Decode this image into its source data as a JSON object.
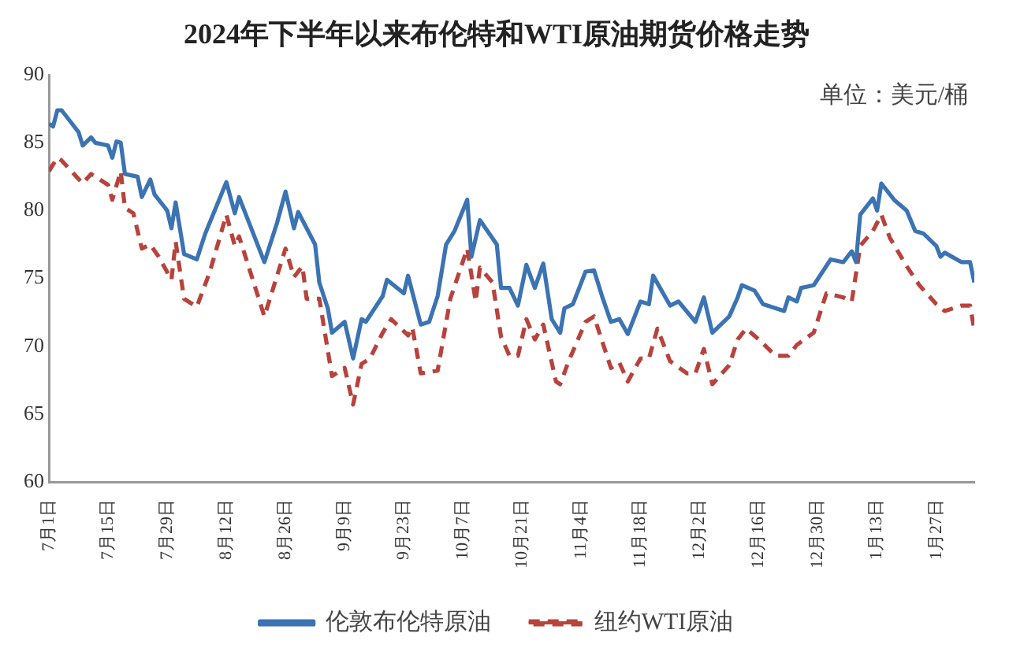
{
  "chart_data": {
    "type": "line",
    "title": "2024年下半年以来布伦特和WTI原油期货价格走势",
    "annotations": [
      "单位：美元/桶"
    ],
    "xlim": [
      "2024-07-01",
      "2025-02-05"
    ],
    "xticks": [
      {
        "value": "2024-07-01",
        "label": "7月1日"
      },
      {
        "value": "2024-07-15",
        "label": "7月15日"
      },
      {
        "value": "2024-07-29",
        "label": "7月29日"
      },
      {
        "value": "2024-08-12",
        "label": "8月12日"
      },
      {
        "value": "2024-08-26",
        "label": "8月26日"
      },
      {
        "value": "2024-09-09",
        "label": "9月9日"
      },
      {
        "value": "2024-09-23",
        "label": "9月23日"
      },
      {
        "value": "2024-10-07",
        "label": "10月7日"
      },
      {
        "value": "2024-10-21",
        "label": "10月21日"
      },
      {
        "value": "2024-11-04",
        "label": "11月4日"
      },
      {
        "value": "2024-11-18",
        "label": "11月18日"
      },
      {
        "value": "2024-12-02",
        "label": "12月2日"
      },
      {
        "value": "2024-12-16",
        "label": "12月16日"
      },
      {
        "value": "2024-12-30",
        "label": "12月30日"
      },
      {
        "value": "2025-01-13",
        "label": "1月13日"
      },
      {
        "value": "2025-01-27",
        "label": "1月27日"
      }
    ],
    "ylim": [
      60,
      90
    ],
    "yticks": [
      60,
      65,
      70,
      75,
      80,
      85,
      90
    ],
    "grid": false,
    "legend": "bottom",
    "marker": "none",
    "series": [
      {
        "name": "伦敦布伦特原油",
        "color": "#3b73b3",
        "line_style": "solid",
        "x": [
          "2024-07-01",
          "2024-07-02",
          "2024-07-03",
          "2024-07-04",
          "2024-07-06",
          "2024-07-08",
          "2024-07-09",
          "2024-07-11",
          "2024-07-12",
          "2024-07-15",
          "2024-07-16",
          "2024-07-17",
          "2024-07-18",
          "2024-07-19",
          "2024-07-22",
          "2024-07-23",
          "2024-07-25",
          "2024-07-26",
          "2024-07-29",
          "2024-07-30",
          "2024-07-31",
          "2024-08-02",
          "2024-08-05",
          "2024-08-07",
          "2024-08-12",
          "2024-08-14",
          "2024-08-15",
          "2024-08-21",
          "2024-08-24",
          "2024-08-26",
          "2024-08-28",
          "2024-08-29",
          "2024-09-02",
          "2024-09-03",
          "2024-09-05",
          "2024-09-06",
          "2024-09-09",
          "2024-09-11",
          "2024-09-13",
          "2024-09-14",
          "2024-09-18",
          "2024-09-19",
          "2024-09-23",
          "2024-09-24",
          "2024-09-27",
          "2024-09-29",
          "2024-10-01",
          "2024-10-03",
          "2024-10-05",
          "2024-10-08",
          "2024-10-09",
          "2024-10-11",
          "2024-10-15",
          "2024-10-16",
          "2024-10-18",
          "2024-10-20",
          "2024-10-22",
          "2024-10-24",
          "2024-10-26",
          "2024-10-28",
          "2024-10-30",
          "2024-10-31",
          "2024-11-02",
          "2024-11-05",
          "2024-11-07",
          "2024-11-09",
          "2024-11-11",
          "2024-11-13",
          "2024-11-15",
          "2024-11-18",
          "2024-11-20",
          "2024-11-21",
          "2024-11-25",
          "2024-11-27",
          "2024-12-01",
          "2024-12-03",
          "2024-12-05",
          "2024-12-09",
          "2024-12-11",
          "2024-12-12",
          "2024-12-15",
          "2024-12-17",
          "2024-12-22",
          "2024-12-23",
          "2024-12-25",
          "2024-12-26",
          "2024-12-29",
          "2025-01-02",
          "2025-01-05",
          "2025-01-07",
          "2025-01-08",
          "2025-01-09",
          "2025-01-12",
          "2025-01-13",
          "2025-01-14",
          "2025-01-17",
          "2025-01-20",
          "2025-01-22",
          "2025-01-24",
          "2025-01-27",
          "2025-01-28",
          "2025-01-29",
          "2025-02-02",
          "2025-02-04",
          "2025-02-05"
        ],
        "values": [
          86.4,
          86.2,
          87.4,
          87.4,
          86.6,
          85.8,
          84.8,
          85.4,
          85.0,
          84.8,
          83.9,
          85.1,
          85.0,
          82.7,
          82.5,
          81.0,
          82.3,
          81.2,
          80.0,
          78.7,
          80.6,
          76.8,
          76.4,
          78.3,
          82.1,
          79.8,
          81.0,
          76.2,
          79.1,
          81.4,
          78.7,
          79.9,
          77.5,
          74.7,
          72.8,
          71.0,
          71.8,
          69.1,
          72.0,
          71.8,
          73.7,
          74.9,
          73.9,
          75.2,
          71.6,
          71.8,
          73.7,
          77.5,
          78.5,
          80.8,
          76.6,
          79.3,
          77.5,
          74.3,
          74.3,
          73.0,
          76.0,
          74.3,
          76.1,
          72.0,
          71.0,
          72.8,
          73.1,
          75.5,
          75.6,
          73.6,
          71.8,
          72.0,
          70.9,
          73.3,
          73.1,
          75.2,
          73.0,
          73.3,
          71.8,
          73.6,
          71.0,
          72.2,
          73.6,
          74.5,
          74.1,
          73.1,
          72.6,
          73.6,
          73.3,
          74.3,
          74.5,
          76.4,
          76.2,
          77.0,
          76.2,
          79.7,
          80.9,
          80.0,
          82.0,
          80.8,
          80.0,
          78.5,
          78.3,
          77.4,
          76.6,
          76.9,
          76.2,
          76.2,
          74.7
        ]
      },
      {
        "name": "纽约WTI原油",
        "color": "#b8423c",
        "line_style": "dashed",
        "x": [
          "2024-07-01",
          "2024-07-03",
          "2024-07-04",
          "2024-07-09",
          "2024-07-11",
          "2024-07-15",
          "2024-07-16",
          "2024-07-18",
          "2024-07-19",
          "2024-07-21",
          "2024-07-23",
          "2024-07-25",
          "2024-07-27",
          "2024-07-30",
          "2024-07-31",
          "2024-08-02",
          "2024-08-05",
          "2024-08-08",
          "2024-08-12",
          "2024-08-14",
          "2024-08-15",
          "2024-08-21",
          "2024-08-26",
          "2024-08-28",
          "2024-08-30",
          "2024-08-31",
          "2024-09-03",
          "2024-09-06",
          "2024-09-09",
          "2024-09-11",
          "2024-09-13",
          "2024-09-15",
          "2024-09-18",
          "2024-09-20",
          "2024-09-24",
          "2024-09-25",
          "2024-09-27",
          "2024-10-01",
          "2024-10-04",
          "2024-10-08",
          "2024-10-10",
          "2024-10-11",
          "2024-10-14",
          "2024-10-16",
          "2024-10-18",
          "2024-10-20",
          "2024-10-22",
          "2024-10-24",
          "2024-10-26",
          "2024-10-29",
          "2024-10-30",
          "2024-11-01",
          "2024-11-05",
          "2024-11-07",
          "2024-11-11",
          "2024-11-13",
          "2024-11-15",
          "2024-11-18",
          "2024-11-20",
          "2024-11-22",
          "2024-11-25",
          "2024-11-29",
          "2024-12-01",
          "2024-12-03",
          "2024-12-05",
          "2024-12-09",
          "2024-12-11",
          "2024-12-13",
          "2024-12-16",
          "2024-12-20",
          "2024-12-23",
          "2024-12-25",
          "2024-12-29",
          "2025-01-01",
          "2025-01-05",
          "2025-01-07",
          "2025-01-09",
          "2025-01-12",
          "2025-01-14",
          "2025-01-16",
          "2025-01-20",
          "2025-01-23",
          "2025-01-27",
          "2025-01-29",
          "2025-02-02",
          "2025-02-04",
          "2025-02-05"
        ],
        "values": [
          82.9,
          83.9,
          83.7,
          82.0,
          82.7,
          81.9,
          80.8,
          82.9,
          80.2,
          79.8,
          77.2,
          77.5,
          76.6,
          74.9,
          77.7,
          73.5,
          72.9,
          75.4,
          79.7,
          77.4,
          78.1,
          72.2,
          77.2,
          75.1,
          75.9,
          73.5,
          73.5,
          67.8,
          68.4,
          65.7,
          68.7,
          69.1,
          71.0,
          72.0,
          70.8,
          71.4,
          68.0,
          68.2,
          73.5,
          77.2,
          73.3,
          75.8,
          74.7,
          70.7,
          69.3,
          69.3,
          72.0,
          70.5,
          71.6,
          67.4,
          67.2,
          68.9,
          71.8,
          72.2,
          68.4,
          68.8,
          67.4,
          69.1,
          69.1,
          71.3,
          68.9,
          68.0,
          68.0,
          69.8,
          67.2,
          68.6,
          70.5,
          71.3,
          70.5,
          69.3,
          69.3,
          70.1,
          71.0,
          73.9,
          73.6,
          73.3,
          77.4,
          78.5,
          79.7,
          78.0,
          75.9,
          74.5,
          73.1,
          72.6,
          73.0,
          73.0,
          71.2
        ]
      }
    ]
  }
}
